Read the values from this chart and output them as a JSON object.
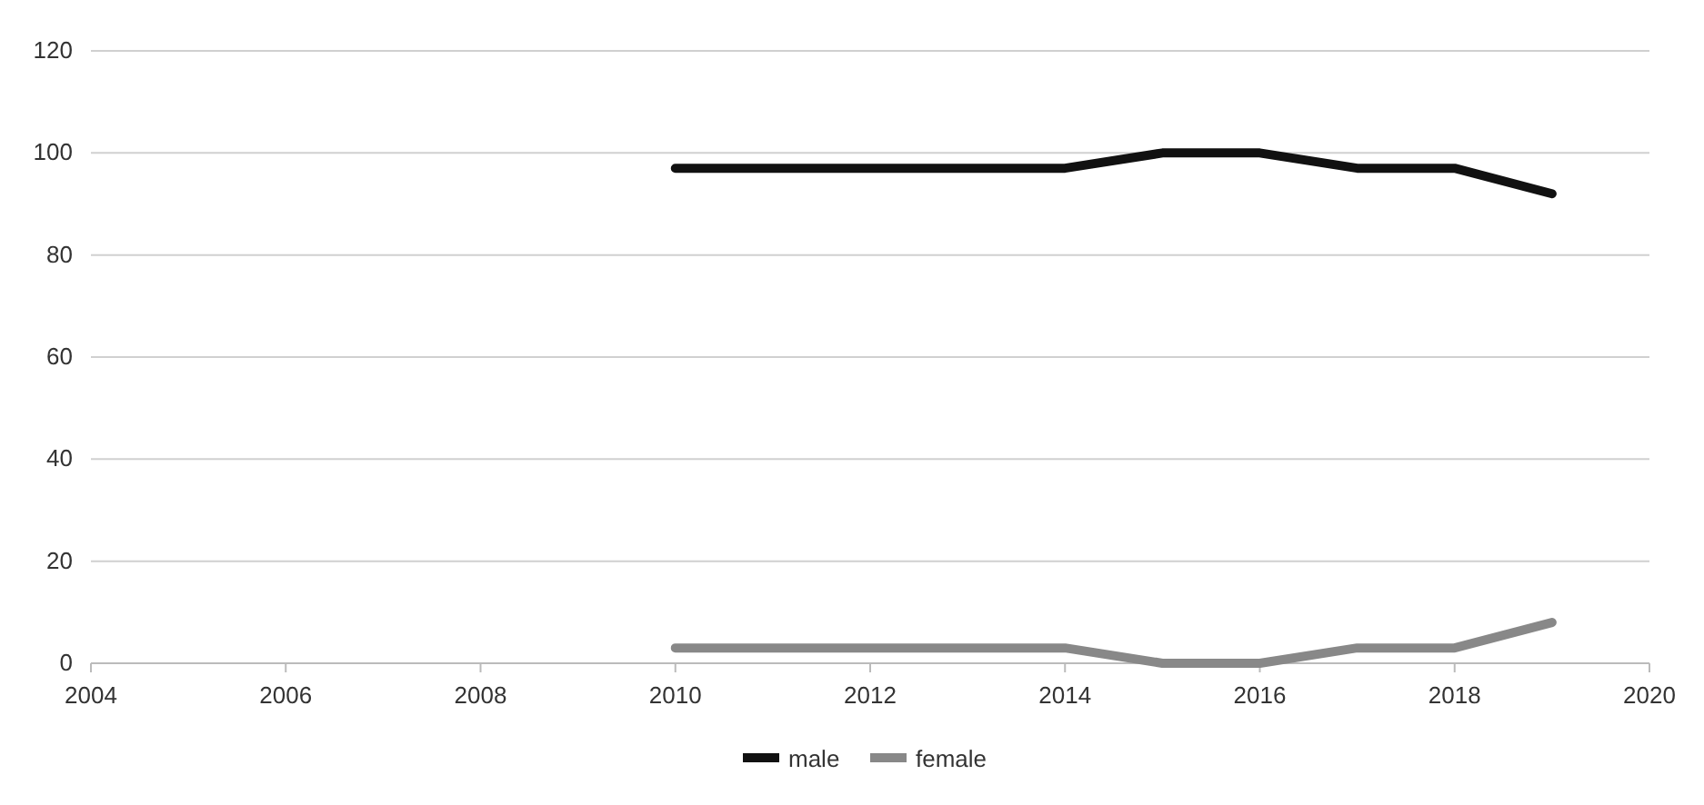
{
  "chart_data": {
    "type": "line",
    "x": [
      2010,
      2011,
      2012,
      2013,
      2014,
      2015,
      2016,
      2017,
      2018,
      2019
    ],
    "series": [
      {
        "name": "male",
        "color": "#111111",
        "values": [
          97,
          97,
          97,
          97,
          97,
          100,
          100,
          97,
          97,
          92
        ]
      },
      {
        "name": "female",
        "color": "#888888",
        "values": [
          3,
          3,
          3,
          3,
          3,
          0,
          0,
          3,
          3,
          8
        ]
      }
    ],
    "xlim": [
      2004,
      2020
    ],
    "xticks": [
      2004,
      2006,
      2008,
      2010,
      2012,
      2014,
      2016,
      2018,
      2020
    ],
    "ylim": [
      0,
      120
    ],
    "yticks": [
      0,
      20,
      40,
      60,
      80,
      100,
      120
    ],
    "grid": "y",
    "legend": "bottom",
    "marker": "none",
    "line_style": "solid"
  }
}
